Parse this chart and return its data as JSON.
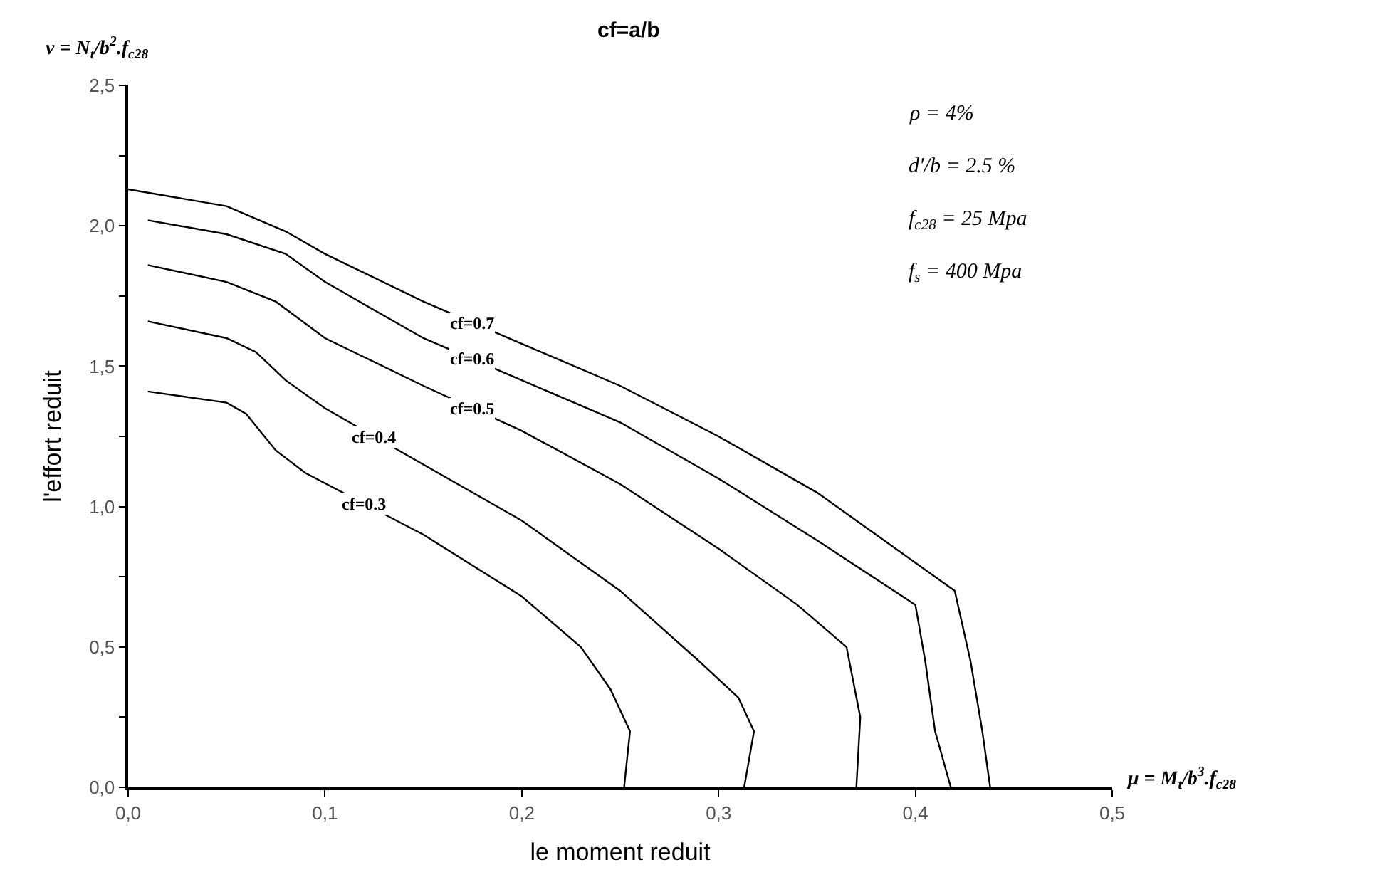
{
  "chart_data": {
    "type": "line",
    "title": "cf=a/b",
    "xlabel": "le moment reduit",
    "ylabel": "l'effort reduit",
    "xlim": [
      0,
      0.5
    ],
    "ylim": [
      0,
      2.5
    ],
    "xticks": [
      {
        "value": 0,
        "label": "0,0"
      },
      {
        "value": 0.1,
        "label": "0,1"
      },
      {
        "value": 0.2,
        "label": "0,2"
      },
      {
        "value": 0.3,
        "label": "0,3"
      },
      {
        "value": 0.4,
        "label": "0,4"
      },
      {
        "value": 0.5,
        "label": "0,5"
      }
    ],
    "yticks": [
      {
        "value": 0,
        "label": "0,0"
      },
      {
        "value": 0.25,
        "label": null
      },
      {
        "value": 0.5,
        "label": "0,5"
      },
      {
        "value": 0.75,
        "label": null
      },
      {
        "value": 1.0,
        "label": "1,0"
      },
      {
        "value": 1.25,
        "label": null
      },
      {
        "value": 1.5,
        "label": "1,5"
      },
      {
        "value": 1.75,
        "label": null
      },
      {
        "value": 2.0,
        "label": "2,0"
      },
      {
        "value": 2.25,
        "label": null
      },
      {
        "value": 2.5,
        "label": "2,5"
      }
    ],
    "legend": false,
    "marker": "none",
    "line_style": "solid",
    "series": [
      {
        "name": "cf=0.3",
        "color": "#000000",
        "x": [
          0.01,
          0.05,
          0.06,
          0.075,
          0.09,
          0.15,
          0.2,
          0.23,
          0.245,
          0.255,
          0.252
        ],
        "values": [
          1.41,
          1.37,
          1.33,
          1.2,
          1.12,
          0.9,
          0.68,
          0.5,
          0.35,
          0.2,
          0.0
        ]
      },
      {
        "name": "cf=0.4",
        "color": "#000000",
        "x": [
          0.01,
          0.05,
          0.065,
          0.08,
          0.1,
          0.15,
          0.2,
          0.25,
          0.29,
          0.31,
          0.318,
          0.313
        ],
        "values": [
          1.66,
          1.6,
          1.55,
          1.45,
          1.35,
          1.15,
          0.95,
          0.7,
          0.45,
          0.32,
          0.2,
          0.0
        ]
      },
      {
        "name": "cf=0.5",
        "color": "#000000",
        "x": [
          0.01,
          0.05,
          0.075,
          0.1,
          0.15,
          0.2,
          0.25,
          0.3,
          0.34,
          0.365,
          0.372,
          0.37
        ],
        "values": [
          1.86,
          1.8,
          1.73,
          1.6,
          1.43,
          1.27,
          1.08,
          0.85,
          0.65,
          0.5,
          0.25,
          0.0
        ]
      },
      {
        "name": "cf=0.6",
        "color": "#000000",
        "x": [
          0.01,
          0.05,
          0.08,
          0.1,
          0.15,
          0.2,
          0.25,
          0.3,
          0.35,
          0.4,
          0.405,
          0.41,
          0.418
        ],
        "values": [
          2.02,
          1.97,
          1.9,
          1.8,
          1.6,
          1.45,
          1.3,
          1.1,
          0.88,
          0.65,
          0.45,
          0.2,
          0.0
        ]
      },
      {
        "name": "cf=0.7",
        "color": "#000000",
        "x": [
          0.0,
          0.05,
          0.08,
          0.1,
          0.15,
          0.2,
          0.25,
          0.3,
          0.35,
          0.4,
          0.42,
          0.428,
          0.434,
          0.438
        ],
        "values": [
          2.13,
          2.07,
          1.98,
          1.9,
          1.73,
          1.58,
          1.43,
          1.25,
          1.05,
          0.8,
          0.7,
          0.45,
          0.2,
          0.0
        ]
      }
    ],
    "annotations": [
      "v = N$_{t}$/b$^{2}$.f$_{c28}$",
      "μ = M$_{t}$/b$^{3}$.f$_{c28}$",
      "ρ = 4%",
      "d′/b = 2.5 %",
      "f$_{c28}$ = 25 Mpa",
      "f$_{s}$ = 400 Mpa"
    ]
  }
}
